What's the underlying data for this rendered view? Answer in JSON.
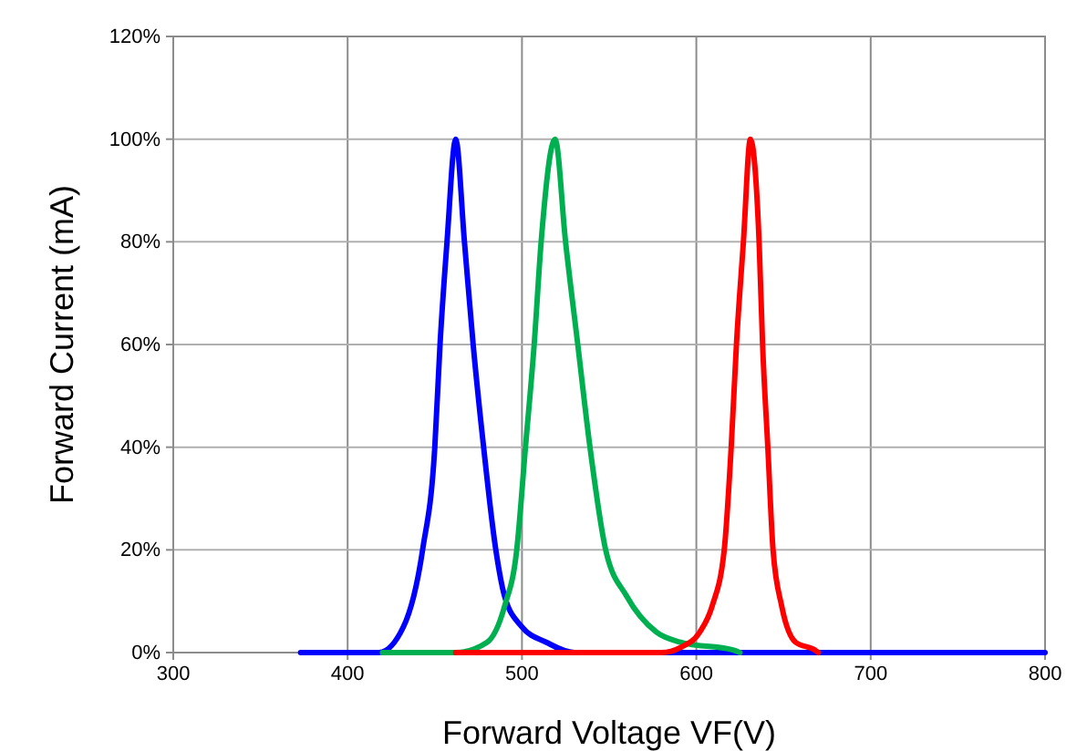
{
  "chart_data": {
    "type": "line",
    "xlabel": "Forward Voltage VF(V)",
    "ylabel": "Forward Current (mA)",
    "xlim": [
      300,
      800
    ],
    "xticks": [
      300,
      400,
      500,
      600,
      700,
      800
    ],
    "ylim": [
      0,
      120
    ],
    "yticks": [
      {
        "value": 0,
        "label": "0%"
      },
      {
        "value": 20,
        "label": "20%"
      },
      {
        "value": 40,
        "label": "40%"
      },
      {
        "value": 60,
        "label": "60%"
      },
      {
        "value": 80,
        "label": "80%"
      },
      {
        "value": 100,
        "label": "100%"
      },
      {
        "value": 120,
        "label": "120%"
      }
    ],
    "grid": true,
    "marker": "none",
    "line_style": "solid",
    "series": [
      {
        "color": "#0000ff",
        "x": [
          373,
          418,
          432,
          443,
          450,
          453,
          457,
          462,
          467,
          472,
          478,
          485,
          490,
          500,
          514,
          530,
          600,
          700,
          800
        ],
        "values": [
          0,
          0,
          5,
          20,
          40,
          60,
          80,
          100,
          80,
          60,
          40,
          20,
          11,
          5,
          2,
          0,
          0,
          0,
          0
        ]
      },
      {
        "color": "#00b050",
        "x": [
          420,
          462,
          480,
          490,
          497,
          502,
          507,
          511,
          519,
          525,
          532,
          539,
          548,
          560,
          577,
          591,
          621,
          625
        ],
        "values": [
          0,
          0,
          2,
          9,
          20,
          40,
          60,
          80,
          100,
          80,
          60,
          40,
          20,
          11,
          4,
          2,
          0.5,
          0
        ]
      },
      {
        "color": "#ff0000",
        "x": [
          462,
          580,
          591,
          602,
          609,
          616,
          620,
          623,
          627,
          631,
          636,
          638,
          641,
          644,
          649,
          657,
          668,
          670
        ],
        "values": [
          0,
          0,
          1,
          4,
          9,
          20,
          40,
          60,
          80,
          100,
          80,
          60,
          40,
          20,
          9,
          2,
          0.5,
          0
        ]
      }
    ]
  }
}
